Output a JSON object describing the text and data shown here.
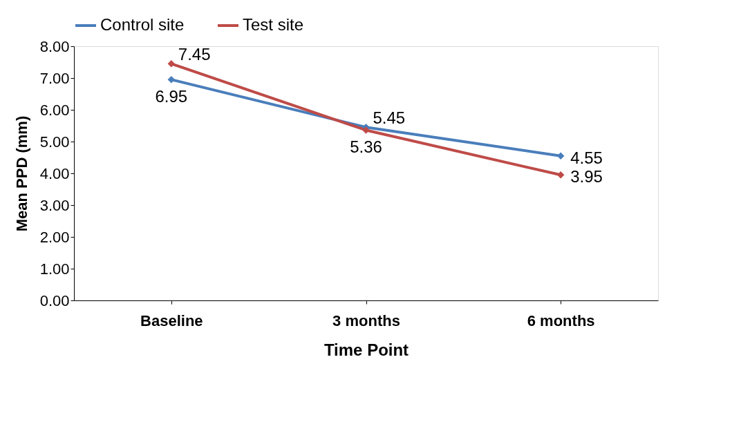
{
  "chart_data": {
    "type": "line",
    "xlabel": "Time Point",
    "ylabel": "Mean PPD (mm)",
    "categories": [
      "Baseline",
      "3 months",
      "6 months"
    ],
    "series": [
      {
        "name": "Control site",
        "color": "#4a7ebb",
        "values": [
          6.95,
          5.45,
          4.55
        ]
      },
      {
        "name": "Test site",
        "color": "#be4b48",
        "values": [
          7.45,
          5.36,
          3.95
        ]
      }
    ],
    "ylim": [
      0,
      8
    ],
    "yticks": [
      {
        "value": 0,
        "label": "0.00"
      },
      {
        "value": 1,
        "label": "1.00"
      },
      {
        "value": 2,
        "label": "2.00"
      },
      {
        "value": 3,
        "label": "3.00"
      },
      {
        "value": 4,
        "label": "4.00"
      },
      {
        "value": 5,
        "label": "5.00"
      },
      {
        "value": 6,
        "label": "6.00"
      },
      {
        "value": 7,
        "label": "7.00"
      },
      {
        "value": 8,
        "label": "8.00"
      }
    ],
    "data_labels": true,
    "grid": false,
    "legend": "top",
    "marker": "diamond",
    "line_style": "solid"
  }
}
